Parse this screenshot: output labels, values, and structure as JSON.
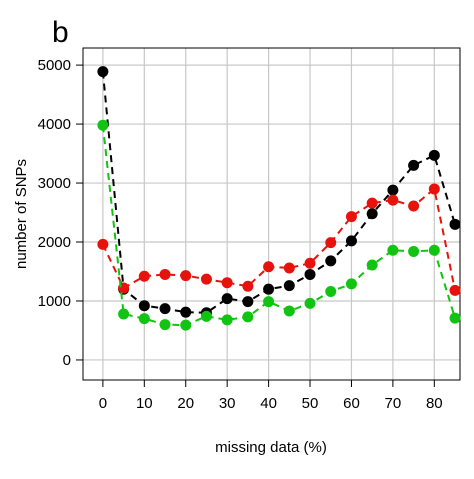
{
  "chart_data": {
    "type": "line",
    "panel_label": "b",
    "xlabel": "missing data (%)",
    "ylabel": "number of SNPs",
    "x": [
      0,
      5,
      10,
      15,
      20,
      25,
      30,
      35,
      40,
      45,
      50,
      55,
      60,
      65,
      70,
      75,
      80,
      85
    ],
    "series": [
      {
        "color": "#000000",
        "values": [
          4890,
          1200,
          920,
          870,
          810,
          800,
          1040,
          990,
          1200,
          1260,
          1450,
          1680,
          2020,
          2480,
          2880,
          3300,
          3470,
          2300
        ]
      },
      {
        "color": "#e8120c",
        "values": [
          1960,
          1220,
          1420,
          1450,
          1430,
          1370,
          1310,
          1250,
          1580,
          1560,
          1640,
          1990,
          2430,
          2660,
          2710,
          2610,
          2900,
          1180
        ]
      },
      {
        "color": "#11c411",
        "values": [
          3980,
          780,
          700,
          600,
          590,
          740,
          680,
          730,
          990,
          830,
          960,
          1160,
          1290,
          1610,
          1860,
          1840,
          1860,
          710
        ]
      }
    ],
    "xlim": [
      -4.8,
      86.2
    ],
    "ylim": [
      -340,
      5290
    ],
    "xticks": [
      0,
      10,
      20,
      30,
      40,
      50,
      60,
      70,
      80
    ],
    "yticks": [
      0,
      1000,
      2000,
      3000,
      4000,
      5000
    ],
    "grid": true
  }
}
